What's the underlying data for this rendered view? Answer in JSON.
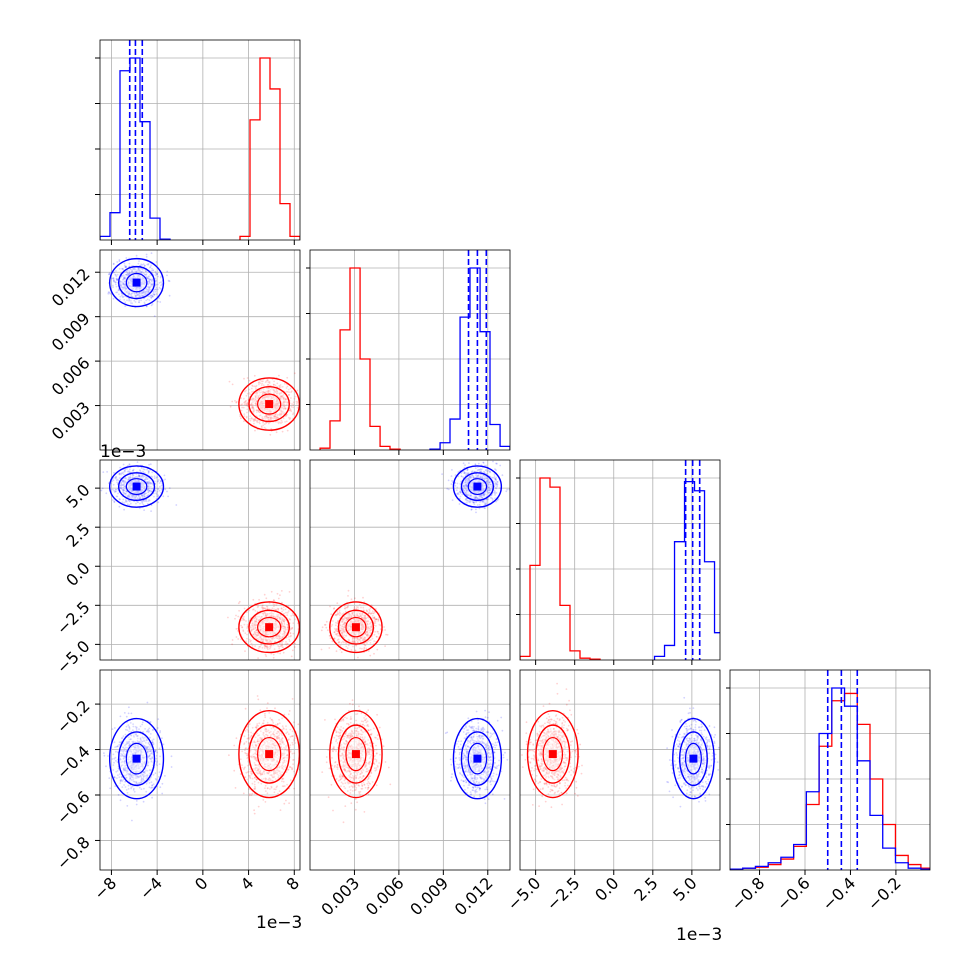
{
  "chart_data": {
    "type": "corner",
    "grid": true,
    "colors": {
      "blue": "#0000ff",
      "red": "#ff0000"
    },
    "exponent_labels": [
      "1e−3",
      "1e−3",
      "1e−3"
    ],
    "params": [
      {
        "range": [
          -9.0,
          8.5
        ],
        "ticks": [
          -8,
          -4,
          0,
          4,
          8
        ],
        "tick_labels": [
          "−8",
          "−4",
          "0",
          "4",
          "8"
        ],
        "exponent_label_index": 0
      },
      {
        "range": [
          0.0,
          0.0135
        ],
        "ticks": [
          0.003,
          0.006,
          0.009,
          0.012
        ],
        "tick_labels": [
          "0.003",
          "0.006",
          "0.009",
          "0.012"
        ]
      },
      {
        "range": [
          -6.0,
          6.8
        ],
        "ticks": [
          -5.0,
          -2.5,
          0.0,
          2.5,
          5.0
        ],
        "tick_labels": [
          "−5.0",
          "−2.5",
          "0.0",
          "2.5",
          "5.0"
        ],
        "exponent_label_index": 1
      },
      {
        "range": [
          -0.93,
          -0.05
        ],
        "ticks": [
          -0.8,
          -0.6,
          -0.4,
          -0.2
        ],
        "tick_labels": [
          "−0.8",
          "−0.6",
          "−0.4",
          "−0.2"
        ]
      }
    ],
    "clusters": {
      "blue": {
        "mean": [
          -5.8,
          0.0113,
          5.1,
          -0.44
        ],
        "sd": [
          0.8,
          0.00055,
          0.45,
          0.06
        ]
      },
      "red": {
        "mean": [
          5.8,
          0.0031,
          -3.9,
          -0.42
        ],
        "sd": [
          0.9,
          0.0006,
          0.55,
          0.065
        ]
      }
    },
    "histograms": [
      {
        "blue": {
          "edges": [
            -9.0,
            -8.125,
            -7.25,
            -6.375,
            -5.5,
            -4.625,
            -3.75,
            -2.875
          ],
          "counts": [
            0.02,
            0.15,
            0.93,
            1.0,
            0.65,
            0.12,
            0.005
          ]
        },
        "red": {
          "edges": [
            3.25,
            4.125,
            5.0,
            5.875,
            6.75,
            7.625,
            8.5
          ],
          "counts": [
            0.02,
            0.66,
            1.0,
            0.83,
            0.2,
            0.02
          ]
        },
        "quantile_lines": [
          -6.4,
          -5.9,
          -5.3
        ]
      },
      {
        "blue": {
          "edges": [
            0.0081,
            0.00878,
            0.00945,
            0.01013,
            0.0108,
            0.01148,
            0.01215,
            0.01283,
            0.0135
          ],
          "counts": [
            0.005,
            0.04,
            0.17,
            0.73,
            1.0,
            0.65,
            0.14,
            0.02
          ]
        },
        "red": {
          "edges": [
            0.00068,
            0.00135,
            0.00203,
            0.0027,
            0.00338,
            0.00405,
            0.00473,
            0.0054,
            0.00608
          ],
          "counts": [
            0.01,
            0.16,
            0.66,
            1.0,
            0.5,
            0.13,
            0.02,
            0.005
          ]
        },
        "quantile_lines": [
          0.0107,
          0.0113,
          0.0119
        ]
      },
      {
        "blue": {
          "edges": [
            2.61,
            3.25,
            3.89,
            4.53,
            5.17,
            5.81,
            6.45,
            7.09
          ],
          "counts": [
            0.02,
            0.08,
            0.65,
            0.98,
            0.93,
            0.54,
            0.15
          ]
        },
        "red": {
          "edges": [
            -6.0,
            -5.36,
            -4.72,
            -4.08,
            -3.44,
            -2.8,
            -2.16,
            -1.52,
            -0.88
          ],
          "counts": [
            0.02,
            0.52,
            1.0,
            0.95,
            0.3,
            0.05,
            0.01,
            0.005
          ]
        },
        "quantile_lines": [
          4.6,
          5.05,
          5.5
        ]
      },
      {
        "blue": {
          "edges": [
            -0.93,
            -0.874,
            -0.818,
            -0.762,
            -0.706,
            -0.65,
            -0.594,
            -0.538,
            -0.482,
            -0.426,
            -0.37,
            -0.314,
            -0.258,
            -0.202,
            -0.146,
            -0.09,
            -0.05
          ],
          "counts": [
            0.005,
            0.01,
            0.02,
            0.04,
            0.07,
            0.14,
            0.43,
            0.75,
            1.0,
            0.9,
            0.6,
            0.3,
            0.12,
            0.04,
            0.01,
            0.005
          ]
        },
        "red": {
          "edges": [
            -0.93,
            -0.874,
            -0.818,
            -0.762,
            -0.706,
            -0.65,
            -0.594,
            -0.538,
            -0.482,
            -0.426,
            -0.37,
            -0.314,
            -0.258,
            -0.202,
            -0.146,
            -0.09,
            -0.05
          ],
          "counts": [
            0.005,
            0.01,
            0.015,
            0.03,
            0.06,
            0.13,
            0.36,
            0.68,
            0.93,
            0.97,
            0.8,
            0.5,
            0.25,
            0.08,
            0.03,
            0.01
          ]
        },
        "quantile_lines": [
          -0.5,
          -0.44,
          -0.37
        ]
      }
    ]
  }
}
